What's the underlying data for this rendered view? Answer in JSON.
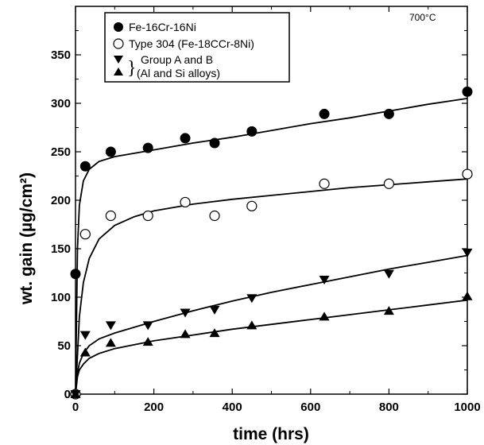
{
  "chart_data": {
    "type": "scatter",
    "annotation": "700°C",
    "xlabel": "time (hrs)",
    "ylabel": "wt. gain (µg/cm²)",
    "xlim": [
      0,
      1000
    ],
    "ylim": [
      0,
      400
    ],
    "xticks": [
      0,
      200,
      400,
      600,
      800,
      1000
    ],
    "yticks": [
      0,
      50,
      100,
      150,
      200,
      250,
      300,
      350
    ],
    "grid": false,
    "legend_position": "top-left",
    "legend_group_label_line1": "Group A and B",
    "legend_group_label_line2": "(Al and Si alloys)",
    "series": [
      {
        "name": "Fe-16Cr-16Ni",
        "marker": "filled-circle",
        "points": [
          [
            0,
            124
          ],
          [
            25,
            235
          ],
          [
            90,
            250
          ],
          [
            185,
            254
          ],
          [
            280,
            264
          ],
          [
            355,
            259
          ],
          [
            450,
            271
          ],
          [
            635,
            289
          ],
          [
            800,
            289
          ],
          [
            1000,
            312
          ]
        ],
        "fit": [
          [
            0,
            0
          ],
          [
            5,
            150
          ],
          [
            10,
            195
          ],
          [
            20,
            220
          ],
          [
            35,
            232
          ],
          [
            60,
            240
          ],
          [
            100,
            245
          ],
          [
            200,
            252
          ],
          [
            300,
            259
          ],
          [
            400,
            265
          ],
          [
            500,
            272
          ],
          [
            600,
            279
          ],
          [
            700,
            285
          ],
          [
            800,
            292
          ],
          [
            900,
            299
          ],
          [
            1000,
            305
          ]
        ]
      },
      {
        "name": "Type 304 (Fe-18CCr-8Ni)",
        "marker": "open-circle",
        "points": [
          [
            0,
            0
          ],
          [
            25,
            165
          ],
          [
            90,
            184
          ],
          [
            185,
            184
          ],
          [
            280,
            198
          ],
          [
            355,
            184
          ],
          [
            450,
            194
          ],
          [
            635,
            217
          ],
          [
            800,
            217
          ],
          [
            1000,
            227
          ]
        ],
        "fit": [
          [
            0,
            0
          ],
          [
            5,
            40
          ],
          [
            10,
            80
          ],
          [
            20,
            115
          ],
          [
            35,
            140
          ],
          [
            60,
            160
          ],
          [
            100,
            174
          ],
          [
            150,
            183
          ],
          [
            200,
            189
          ],
          [
            300,
            196
          ],
          [
            400,
            201
          ],
          [
            500,
            205
          ],
          [
            600,
            209
          ],
          [
            700,
            213
          ],
          [
            800,
            216
          ],
          [
            900,
            219
          ],
          [
            1000,
            222
          ]
        ]
      },
      {
        "name": "Group A and B (Al and Si alloys)",
        "marker": "filled-triangle-down",
        "points": [
          [
            0,
            0
          ],
          [
            25,
            61
          ],
          [
            90,
            71
          ],
          [
            185,
            71
          ],
          [
            280,
            84
          ],
          [
            355,
            87
          ],
          [
            450,
            99
          ],
          [
            635,
            118
          ],
          [
            800,
            124
          ],
          [
            1000,
            146
          ]
        ],
        "fit": [
          [
            0,
            0
          ],
          [
            5,
            22
          ],
          [
            10,
            32
          ],
          [
            20,
            42
          ],
          [
            35,
            50
          ],
          [
            60,
            57
          ],
          [
            100,
            63
          ],
          [
            200,
            75
          ],
          [
            300,
            86
          ],
          [
            400,
            96
          ],
          [
            500,
            105
          ],
          [
            600,
            113
          ],
          [
            700,
            121
          ],
          [
            800,
            129
          ],
          [
            900,
            136
          ],
          [
            1000,
            143
          ]
        ]
      },
      {
        "name": "Group A and B (Al and Si alloys)",
        "marker": "filled-triangle-up",
        "points": [
          [
            0,
            0
          ],
          [
            25,
            43
          ],
          [
            90,
            53
          ],
          [
            185,
            54
          ],
          [
            280,
            62
          ],
          [
            355,
            63
          ],
          [
            450,
            71
          ],
          [
            635,
            80
          ],
          [
            800,
            86
          ],
          [
            1000,
            101
          ]
        ],
        "fit": [
          [
            0,
            0
          ],
          [
            5,
            18
          ],
          [
            10,
            25
          ],
          [
            20,
            31
          ],
          [
            35,
            37
          ],
          [
            60,
            42
          ],
          [
            100,
            47
          ],
          [
            200,
            55
          ],
          [
            300,
            61
          ],
          [
            400,
            67
          ],
          [
            500,
            72
          ],
          [
            600,
            77
          ],
          [
            700,
            82
          ],
          [
            800,
            87
          ],
          [
            900,
            92
          ],
          [
            1000,
            97
          ]
        ]
      }
    ]
  }
}
